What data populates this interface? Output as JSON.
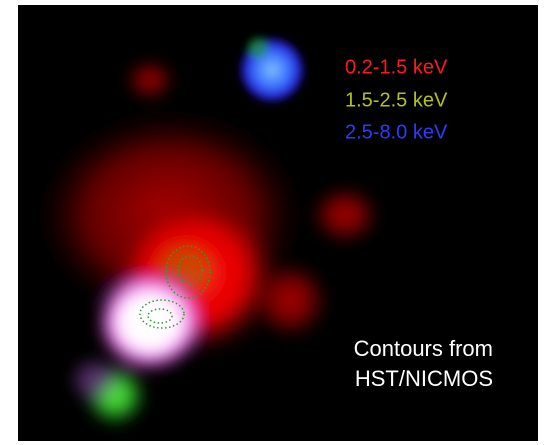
{
  "legend": [
    "0.2-1.5 keV",
    "1.5-2.5 keV",
    "2.5-8.0 keV"
  ],
  "caption": [
    "Contours from",
    "HST/NICMOS"
  ]
}
